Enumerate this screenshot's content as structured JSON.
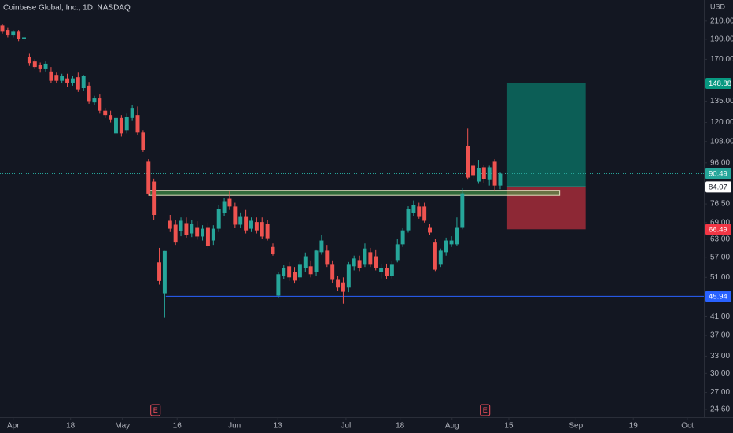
{
  "chart_data": {
    "type": "candlestick",
    "title": "Coinbase Global, Inc., 1D, NASDAQ",
    "currency": "USD",
    "log_scale": true,
    "grid": false,
    "up_color": "#26a69a",
    "down_color": "#ef5350",
    "ylim": [
      23.55,
      236
    ],
    "xlim": [
      -0.436,
      129.65
    ],
    "yticks": [
      {
        "value": 210,
        "label": "210.00"
      },
      {
        "value": 190,
        "label": "190.00"
      },
      {
        "value": 170,
        "label": "170.00"
      },
      {
        "value": 135,
        "label": "135.00"
      },
      {
        "value": 120,
        "label": "120.00"
      },
      {
        "value": 108,
        "label": "108.00"
      },
      {
        "value": 96,
        "label": "96.00"
      },
      {
        "value": 76.5,
        "label": "76.50"
      },
      {
        "value": 69,
        "label": "69.00"
      },
      {
        "value": 63,
        "label": "63.00"
      },
      {
        "value": 57,
        "label": "57.00"
      },
      {
        "value": 51,
        "label": "51.00"
      },
      {
        "value": 41,
        "label": "41.00"
      },
      {
        "value": 37,
        "label": "37.00"
      },
      {
        "value": 33,
        "label": "33.00"
      },
      {
        "value": 30,
        "label": "30.00"
      },
      {
        "value": 27,
        "label": "27.00"
      },
      {
        "value": 24.6,
        "label": "24.60"
      }
    ],
    "xticks": [
      {
        "value": 2,
        "label": "Apr"
      },
      {
        "value": 12.6,
        "label": "18"
      },
      {
        "value": 22.2,
        "label": "May"
      },
      {
        "value": 32.3,
        "label": "16"
      },
      {
        "value": 42.9,
        "label": "Jun"
      },
      {
        "value": 50.9,
        "label": "13"
      },
      {
        "value": 63.5,
        "label": "Jul"
      },
      {
        "value": 73.5,
        "label": "18"
      },
      {
        "value": 83.1,
        "label": "Aug"
      },
      {
        "value": 93.6,
        "label": "15"
      },
      {
        "value": 106,
        "label": "Sep"
      },
      {
        "value": 116.6,
        "label": "19"
      },
      {
        "value": 126.6,
        "label": "Oct"
      }
    ],
    "ohlc": {
      "open": [
        205,
        200,
        194,
        198,
        190,
        172,
        168,
        165,
        161,
        159,
        156,
        151,
        153,
        149,
        154,
        145,
        147,
        134,
        137,
        128,
        125,
        113,
        123,
        115,
        123,
        125,
        113.5,
        96.6,
        86.6,
        55.4,
        46.7,
        69.7,
        68.2,
        66,
        68.8,
        65,
        67.3,
        63.9,
        67.3,
        62.5,
        66.7,
        72.8,
        78.7,
        75.4,
        68.2,
        71.2,
        66.7,
        69.2,
        69.2,
        68.5,
        60.3,
        46.1,
        51.4,
        54.2,
        52.5,
        51,
        53.7,
        54.2,
        52.5,
        58.6,
        59.1,
        54.9,
        50.3,
        49.6,
        48.2,
        54.2,
        56.1,
        54.9,
        58.6,
        57.3,
        52.5,
        53.7,
        51.4,
        56.1,
        61.2,
        66.1,
        72.8,
        75.4,
        75.4,
        67.3,
        61.8,
        54.9,
        58.6,
        61.2,
        61.2,
        67.3,
        105.4,
        94.5,
        86.6,
        93.7,
        87.3,
        96.6,
        84.7
      ],
      "high": [
        207,
        203,
        200,
        200,
        194,
        176,
        170,
        167,
        168,
        163,
        158,
        157,
        157,
        155,
        158,
        156,
        150,
        139,
        140,
        130,
        128,
        125,
        125,
        126,
        132,
        131,
        115,
        98,
        88,
        60,
        59,
        72,
        70,
        71,
        71,
        70,
        69.5,
        68,
        69,
        68,
        76,
        79,
        82,
        77,
        73,
        74,
        71,
        71,
        71,
        70,
        61.5,
        52.5,
        54.5,
        55.5,
        54,
        56,
        58.5,
        56,
        59.5,
        64.5,
        61,
        56,
        51.5,
        51,
        55.5,
        57.5,
        57.5,
        61.5,
        60,
        59.5,
        55,
        55,
        55.8,
        63,
        67,
        75.5,
        78,
        77,
        77,
        68.5,
        63,
        59.8,
        63.5,
        64,
        71,
        83.5,
        116,
        96,
        97.6,
        95,
        94.5,
        98,
        91
      ],
      "low": [
        196,
        192,
        192,
        188,
        188,
        164,
        161,
        158,
        159,
        149,
        149,
        149,
        146,
        147,
        142,
        143,
        133,
        132,
        126,
        123,
        120,
        111,
        111,
        113,
        121,
        112,
        102,
        80,
        70,
        49,
        40.8,
        65.5,
        61,
        64,
        63.5,
        63.7,
        62.8,
        62.5,
        59.8,
        61,
        65.5,
        71.5,
        74,
        67,
        67,
        65,
        65.5,
        65,
        63,
        62.5,
        57.5,
        45.5,
        50.5,
        50,
        49.3,
        50,
        52.5,
        51,
        51.5,
        57.8,
        54,
        49.5,
        47.3,
        44.1,
        47,
        53,
        52.8,
        54,
        54,
        53,
        50.7,
        50.5,
        50.7,
        55.4,
        60.3,
        65.3,
        71.5,
        70.5,
        69,
        64.5,
        52.8,
        54,
        57.5,
        60.3,
        60.8,
        66.5,
        87.5,
        88,
        85.5,
        86,
        84.7,
        82.5,
        83
      ],
      "close": [
        198,
        194,
        198,
        190,
        192,
        166.5,
        163,
        161,
        166,
        151,
        151,
        155,
        149,
        153,
        144,
        155,
        135,
        137,
        128,
        125,
        122,
        123,
        113,
        124,
        130,
        113.5,
        103,
        81,
        72,
        50,
        59,
        66.7,
        61.8,
        69.7,
        64.5,
        68.5,
        63.9,
        66.7,
        60.6,
        66.7,
        74.4,
        77.7,
        75.4,
        68.2,
        71.2,
        66.1,
        69.7,
        66.1,
        63.9,
        63.3,
        58.1,
        51.9,
        53.7,
        51,
        50.1,
        54.9,
        57.3,
        51.9,
        59.1,
        62.5,
        54.9,
        50.3,
        48.2,
        47.1,
        54.9,
        56.6,
        53.7,
        59.8,
        54.9,
        53.7,
        53.7,
        51.4,
        54.9,
        61.2,
        66.1,
        74.4,
        76,
        71.2,
        69.7,
        65.3,
        53.2,
        59.1,
        62.5,
        62.5,
        67.3,
        81.1,
        88.5,
        89.7,
        93.3,
        87.7,
        93.7,
        84.7,
        90.49
      ]
    },
    "zone": {
      "top": 82.5,
      "bottom": 80.2,
      "from": 27.2,
      "to": 103
    },
    "level": {
      "value": 45.94,
      "from": 30.2,
      "color": "#2962ff"
    },
    "position": {
      "target": 148.88,
      "entry": 84.07,
      "stop": 66.49,
      "from": 93.3,
      "to": 107.8,
      "profit_color": "#089981",
      "loss_color": "#f23645"
    },
    "events": [
      {
        "x": 28.3,
        "label": "E"
      },
      {
        "x": 89.2,
        "label": "E"
      }
    ]
  }
}
